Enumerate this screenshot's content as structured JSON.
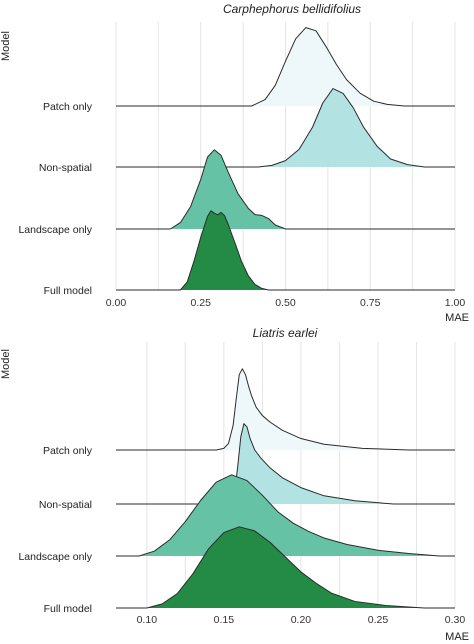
{
  "chart_data": [
    {
      "type": "ridgeline",
      "title": "Carphephorus bellidifolius",
      "xlabel": "MAE",
      "ylabel": "Model",
      "xlim": [
        0,
        1
      ],
      "xticks": [
        "0.00",
        "0.25",
        "0.50",
        "0.75",
        "1.00"
      ],
      "xtick_values": [
        0,
        0.25,
        0.5,
        0.75,
        1.0
      ],
      "grid": true,
      "categories": [
        "Patch only",
        "Non-spatial",
        "Landscape only",
        "Full model"
      ],
      "series": [
        {
          "name": "Patch only",
          "color": "#eef8fa",
          "x": [
            0.4,
            0.44,
            0.47,
            0.5,
            0.53,
            0.56,
            0.59,
            0.62,
            0.65,
            0.68,
            0.72,
            0.76,
            0.8,
            0.85
          ],
          "density": [
            0,
            0.08,
            0.26,
            0.56,
            0.84,
            0.98,
            0.94,
            0.74,
            0.52,
            0.33,
            0.16,
            0.06,
            0.02,
            0
          ]
        },
        {
          "name": "Non-spatial",
          "color": "#b2e2e2",
          "x": [
            0.42,
            0.46,
            0.5,
            0.54,
            0.58,
            0.61,
            0.64,
            0.67,
            0.7,
            0.73,
            0.77,
            0.81,
            0.86,
            0.91
          ],
          "density": [
            0,
            0.02,
            0.08,
            0.22,
            0.5,
            0.8,
            0.98,
            0.92,
            0.74,
            0.5,
            0.26,
            0.1,
            0.03,
            0
          ]
        },
        {
          "name": "Landscape only",
          "color": "#66c2a4",
          "x": [
            0.16,
            0.19,
            0.22,
            0.25,
            0.27,
            0.29,
            0.31,
            0.33,
            0.36,
            0.39,
            0.41,
            0.43,
            0.45,
            0.47,
            0.5
          ],
          "density": [
            0,
            0.08,
            0.28,
            0.62,
            0.9,
            0.99,
            0.92,
            0.72,
            0.44,
            0.26,
            0.18,
            0.17,
            0.13,
            0.05,
            0
          ]
        },
        {
          "name": "Full model",
          "color": "#238b45",
          "x": [
            0.19,
            0.21,
            0.23,
            0.25,
            0.27,
            0.28,
            0.29,
            0.3,
            0.31,
            0.32,
            0.33,
            0.35,
            0.37,
            0.39,
            0.41,
            0.43,
            0.45
          ],
          "density": [
            0,
            0.1,
            0.36,
            0.66,
            0.92,
            0.99,
            0.96,
            0.94,
            0.97,
            0.93,
            0.83,
            0.6,
            0.36,
            0.18,
            0.07,
            0.02,
            0
          ]
        }
      ]
    },
    {
      "type": "ridgeline",
      "title": "Liatris earlei",
      "xlabel": "MAE",
      "ylabel": "Model",
      "xlim": [
        0.08,
        0.3
      ],
      "xticks": [
        "0.10",
        "0.15",
        "0.20",
        "0.25",
        "0.30"
      ],
      "xtick_values": [
        0.1,
        0.15,
        0.2,
        0.25,
        0.3
      ],
      "grid": true,
      "categories": [
        "Patch only",
        "Non-spatial",
        "Landscape only",
        "Full model"
      ],
      "series": [
        {
          "name": "Patch only",
          "color": "#eef8fa",
          "x": [
            0.145,
            0.15,
            0.153,
            0.156,
            0.158,
            0.16,
            0.162,
            0.164,
            0.166,
            0.168,
            0.171,
            0.175,
            0.18,
            0.188,
            0.2,
            0.215,
            0.24,
            0.27
          ],
          "density": [
            0,
            0.02,
            0.08,
            0.3,
            0.62,
            0.92,
            0.99,
            0.92,
            0.78,
            0.66,
            0.52,
            0.42,
            0.34,
            0.24,
            0.14,
            0.07,
            0.02,
            0
          ]
        },
        {
          "name": "Non-spatial",
          "color": "#b2e2e2",
          "x": [
            0.15,
            0.154,
            0.157,
            0.159,
            0.161,
            0.163,
            0.165,
            0.167,
            0.17,
            0.174,
            0.18,
            0.188,
            0.2,
            0.215,
            0.235,
            0.26
          ],
          "density": [
            0,
            0.03,
            0.14,
            0.46,
            0.82,
            0.98,
            0.94,
            0.8,
            0.66,
            0.56,
            0.44,
            0.32,
            0.2,
            0.1,
            0.04,
            0
          ]
        },
        {
          "name": "Landscape only",
          "color": "#66c2a4",
          "x": [
            0.095,
            0.105,
            0.115,
            0.125,
            0.135,
            0.145,
            0.155,
            0.165,
            0.175,
            0.185,
            0.195,
            0.205,
            0.215,
            0.23,
            0.25,
            0.27,
            0.29
          ],
          "density": [
            0,
            0.06,
            0.2,
            0.42,
            0.68,
            0.9,
            0.99,
            0.92,
            0.74,
            0.54,
            0.4,
            0.3,
            0.22,
            0.14,
            0.07,
            0.03,
            0
          ]
        },
        {
          "name": "Full model",
          "color": "#238b45",
          "x": [
            0.1,
            0.11,
            0.12,
            0.13,
            0.14,
            0.15,
            0.16,
            0.17,
            0.18,
            0.19,
            0.2,
            0.21,
            0.22,
            0.235,
            0.255,
            0.28
          ],
          "density": [
            0,
            0.05,
            0.18,
            0.42,
            0.72,
            0.92,
            0.99,
            0.94,
            0.8,
            0.62,
            0.44,
            0.3,
            0.18,
            0.08,
            0.03,
            0
          ]
        }
      ]
    }
  ]
}
